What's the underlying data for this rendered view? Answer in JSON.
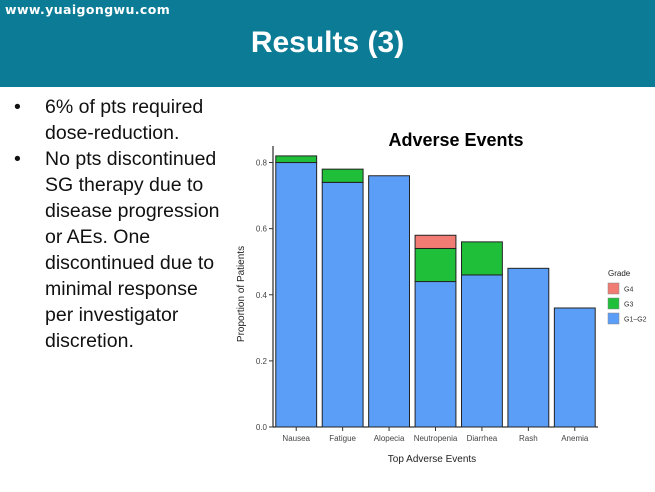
{
  "watermark": "www.yuaigongwu.com",
  "slide_title": "Results (3)",
  "bullets": [
    "6% of pts required dose-reduction.",
    "No pts discontinued SG therapy due to disease progression or AEs. One discontinued due to minimal response per investigator discretion."
  ],
  "chart_data": {
    "type": "bar",
    "stacked": true,
    "title": "Adverse Events",
    "xlabel": "Top Adverse Events",
    "ylabel": "Proportion of Patients",
    "ylim": [
      0,
      0.85
    ],
    "yticks": [
      0.0,
      0.2,
      0.4,
      0.6,
      0.8
    ],
    "categories": [
      "Nausea",
      "Fatigue",
      "Alopecia",
      "Neutropenia",
      "Diarrhea",
      "Rash",
      "Anemia"
    ],
    "series": [
      {
        "name": "G1–G2",
        "color": "#5b9ef7",
        "values": [
          0.8,
          0.74,
          0.76,
          0.44,
          0.46,
          0.48,
          0.36
        ]
      },
      {
        "name": "G3",
        "color": "#1fbf3a",
        "values": [
          0.02,
          0.04,
          0,
          0.1,
          0.1,
          0,
          0
        ]
      },
      {
        "name": "G4",
        "color": "#f07c74",
        "values": [
          0,
          0,
          0,
          0.04,
          0,
          0,
          0
        ]
      }
    ],
    "legend": {
      "title": "Grade",
      "position": "right",
      "order": [
        "G4",
        "G3",
        "G1–G2"
      ]
    },
    "grid": false
  }
}
